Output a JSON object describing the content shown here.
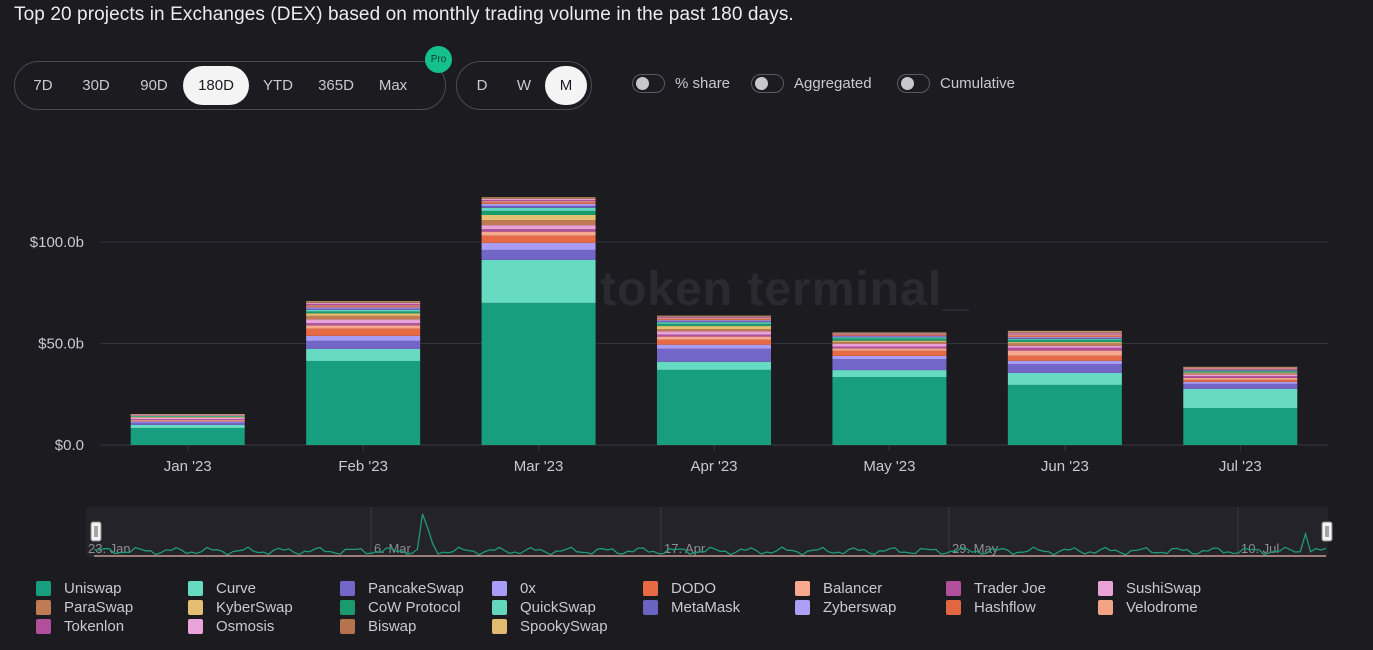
{
  "title": "Top 20 projects in Exchanges (DEX) based on monthly trading volume in the past 180 days.",
  "range_buttons": [
    {
      "label": "7D",
      "active": false
    },
    {
      "label": "30D",
      "active": false
    },
    {
      "label": "90D",
      "active": false
    },
    {
      "label": "180D",
      "active": true
    },
    {
      "label": "YTD",
      "active": false
    },
    {
      "label": "365D",
      "active": false
    },
    {
      "label": "Max",
      "active": false
    }
  ],
  "pro_badge": "Pro",
  "granularity_buttons": [
    {
      "label": "D",
      "active": false
    },
    {
      "label": "W",
      "active": false
    },
    {
      "label": "M",
      "active": true
    }
  ],
  "toggles": [
    {
      "label": "% share",
      "on": false
    },
    {
      "label": "Aggregated",
      "on": false
    },
    {
      "label": "Cumulative",
      "on": false
    }
  ],
  "watermark": "token terminal_",
  "navigator": {
    "labels": [
      "23. Jan",
      "6. Mar",
      "17. Apr",
      "29. May",
      "10. Jul"
    ]
  },
  "chart_data": {
    "type": "bar",
    "stacked": true,
    "title": "Top 20 projects in Exchanges (DEX) based on monthly trading volume in the past 180 days.",
    "xlabel": "",
    "ylabel": "",
    "ylim": [
      0,
      125
    ],
    "yticks": [
      {
        "value": 0,
        "label": "$0.0"
      },
      {
        "value": 50,
        "label": "$50.0b"
      },
      {
        "value": 100,
        "label": "$100.0b"
      }
    ],
    "unit": "USD billions",
    "grid": true,
    "legend_position": "bottom",
    "categories": [
      "Jan '23",
      "Feb '23",
      "Mar '23",
      "Apr '23",
      "May '23",
      "Jun '23",
      "Jul '23"
    ],
    "series": [
      {
        "name": "Uniswap",
        "color": "#179e7e",
        "values": [
          8.4,
          41.4,
          70.0,
          37.0,
          33.5,
          29.6,
          18.2
        ]
      },
      {
        "name": "Curve",
        "color": "#67dbc1",
        "values": [
          1.5,
          5.9,
          21.2,
          4.0,
          3.4,
          5.9,
          9.4
        ]
      },
      {
        "name": "PancakeSwap",
        "color": "#7466c8",
        "values": [
          1.2,
          4.0,
          4.9,
          6.4,
          5.4,
          4.4,
          2.5
        ]
      },
      {
        "name": "0x",
        "color": "#a89cf6",
        "values": [
          0.5,
          2.5,
          3.5,
          2.0,
          1.6,
          1.6,
          1.0
        ]
      },
      {
        "name": "DODO",
        "color": "#e86a45",
        "values": [
          0.3,
          3.5,
          3.5,
          2.5,
          2.5,
          2.5,
          1.0
        ]
      },
      {
        "name": "Balancer",
        "color": "#f7a98e",
        "values": [
          0.4,
          1.6,
          2.0,
          1.5,
          1.2,
          2.5,
          1.0
        ]
      },
      {
        "name": "Trader Joe",
        "color": "#b2509e",
        "values": [
          0.4,
          1.1,
          1.2,
          1.0,
          0.9,
          1.4,
          0.8
        ]
      },
      {
        "name": "SushiSwap",
        "color": "#e8a2d8",
        "values": [
          0.6,
          1.8,
          2.0,
          1.6,
          1.4,
          1.0,
          0.8
        ]
      },
      {
        "name": "ParaSwap",
        "color": "#c07b55",
        "values": [
          0.3,
          1.8,
          2.5,
          1.1,
          0.9,
          1.2,
          0.6
        ]
      },
      {
        "name": "KyberSwap",
        "color": "#e4bf72",
        "values": [
          0.2,
          1.3,
          2.5,
          1.5,
          0.6,
          0.6,
          0.4
        ]
      },
      {
        "name": "CoW Protocol",
        "color": "#1a9b6e",
        "values": [
          0.3,
          0.9,
          2.0,
          1.1,
          1.1,
          1.1,
          0.6
        ]
      },
      {
        "name": "QuickSwap",
        "color": "#62d7bd",
        "values": [
          0.2,
          0.7,
          1.5,
          0.8,
          0.5,
          0.5,
          0.3
        ]
      },
      {
        "name": "MetaMask",
        "color": "#6b63c2",
        "values": [
          0.2,
          0.7,
          1.0,
          0.6,
          0.5,
          0.5,
          0.3
        ]
      },
      {
        "name": "Zyberswap",
        "color": "#ab9ff7",
        "values": [
          0.1,
          0.6,
          1.0,
          0.4,
          0.3,
          0.4,
          0.2
        ]
      },
      {
        "name": "Hashflow",
        "color": "#e06741",
        "values": [
          0.1,
          0.5,
          0.7,
          0.5,
          0.4,
          0.6,
          0.3
        ]
      },
      {
        "name": "Velodrome",
        "color": "#f3a486",
        "values": [
          0.1,
          0.5,
          0.6,
          0.5,
          0.3,
          0.7,
          0.3
        ]
      },
      {
        "name": "Tokenlon",
        "color": "#b04f9a",
        "values": [
          0.1,
          0.7,
          0.6,
          0.4,
          0.3,
          0.4,
          0.2
        ]
      },
      {
        "name": "Osmosis",
        "color": "#e9a4d9",
        "values": [
          0.1,
          0.5,
          0.5,
          0.3,
          0.2,
          0.4,
          0.2
        ]
      },
      {
        "name": "Biswap",
        "color": "#b6734f",
        "values": [
          0.1,
          0.4,
          0.5,
          0.3,
          0.2,
          0.5,
          0.2
        ]
      },
      {
        "name": "SpookySwap",
        "color": "#dfba70",
        "values": [
          0.1,
          0.4,
          0.3,
          0.2,
          0.2,
          0.4,
          0.2
        ]
      }
    ]
  }
}
